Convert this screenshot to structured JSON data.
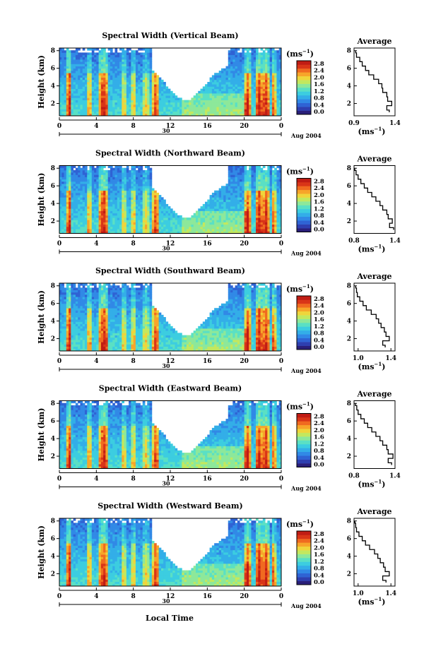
{
  "figure": {
    "xlabel_bottom": "Local Time",
    "colorbar_unit": "(ms",
    "colorbar_unit_exp": "−1",
    "profile_xlabel": "(ms",
    "profile_xlabel_exp": "−1",
    "profile_title": "Average"
  },
  "colors": {
    "scale": [
      "#2a1f7a",
      "#2e3fb0",
      "#2f63d4",
      "#3189e6",
      "#33aee8",
      "#3ccde0",
      "#5ae0c4",
      "#8de89a",
      "#c3e85e",
      "#efd53b",
      "#f7a52a",
      "#f06a20",
      "#d93518",
      "#c01c14"
    ],
    "background": "#ffffff"
  },
  "chart_data": [
    {
      "type": "heatmap",
      "title": "Spectral Width (Vertical Beam)",
      "ylabel": "Height (km)",
      "xticks": [
        "0",
        "4",
        "8",
        "12",
        "16",
        "20",
        "0"
      ],
      "xsub": "30",
      "date_label": "Aug 2004",
      "yticks": [
        "2",
        "4",
        "6",
        "8"
      ],
      "colorbar_ticks": [
        "0.0",
        "0.4",
        "0.8",
        "1.2",
        "1.6",
        "2.0",
        "2.4",
        "2.8"
      ],
      "profile": {
        "xticks": [
          "0.9",
          "1.4"
        ],
        "xlim": [
          0.9,
          1.4
        ],
        "yticks": [
          "2",
          "4",
          "6",
          "8"
        ],
        "heights": [
          1.0,
          1.5,
          2.0,
          2.5,
          3.0,
          3.5,
          4.0,
          4.5,
          5.0,
          5.5,
          6.0,
          6.5,
          7.0,
          7.5,
          8.0
        ],
        "values": [
          1.33,
          1.3,
          1.36,
          1.31,
          1.3,
          1.25,
          1.24,
          1.2,
          1.14,
          1.08,
          1.04,
          1.0,
          0.97,
          0.93,
          0.92
        ]
      }
    },
    {
      "type": "heatmap",
      "title": "Spectral Width (Northward Beam)",
      "ylabel": "Height (km)",
      "xticks": [
        "0",
        "4",
        "8",
        "12",
        "16",
        "20",
        "0"
      ],
      "xsub": "30",
      "date_label": "Aug 2004",
      "yticks": [
        "2",
        "4",
        "6",
        "8"
      ],
      "colorbar_ticks": [
        "0.0",
        "0.4",
        "0.8",
        "1.2",
        "1.6",
        "2.0",
        "2.4",
        "2.8"
      ],
      "profile": {
        "xticks": [
          "0.8",
          "1.4"
        ],
        "xlim": [
          0.8,
          1.4
        ],
        "yticks": [
          "2",
          "4",
          "6",
          "8"
        ],
        "heights": [
          1.0,
          1.5,
          2.0,
          2.5,
          3.0,
          3.5,
          4.0,
          4.5,
          5.0,
          5.5,
          6.0,
          6.5,
          7.0,
          7.5,
          8.0
        ],
        "values": [
          1.38,
          1.32,
          1.36,
          1.3,
          1.28,
          1.22,
          1.18,
          1.12,
          1.06,
          1.0,
          0.95,
          0.9,
          0.86,
          0.83,
          0.81
        ]
      }
    },
    {
      "type": "heatmap",
      "title": "Spectral Width (Southward Beam)",
      "ylabel": "Height (km)",
      "xticks": [
        "0",
        "4",
        "8",
        "12",
        "16",
        "20",
        "0"
      ],
      "xsub": "30",
      "date_label": "Aug 2004",
      "yticks": [
        "2",
        "4",
        "6",
        "8"
      ],
      "colorbar_ticks": [
        "0.0",
        "0.4",
        "0.8",
        "1.2",
        "1.6",
        "2.0",
        "2.4",
        "2.8"
      ],
      "profile": {
        "xticks": [
          "1.0",
          "1.4"
        ],
        "xlim": [
          0.95,
          1.45
        ],
        "yticks": [
          "2",
          "4",
          "6",
          "8"
        ],
        "heights": [
          1.0,
          1.5,
          2.0,
          2.5,
          3.0,
          3.5,
          4.0,
          4.5,
          5.0,
          5.5,
          6.0,
          6.5,
          7.0,
          7.5,
          8.0
        ],
        "values": [
          1.33,
          1.3,
          1.38,
          1.34,
          1.32,
          1.28,
          1.25,
          1.22,
          1.16,
          1.1,
          1.06,
          1.02,
          0.99,
          0.98,
          0.97
        ]
      }
    },
    {
      "type": "heatmap",
      "title": "Spectral Width (Eastward Beam)",
      "ylabel": "Height (km)",
      "xticks": [
        "0",
        "4",
        "8",
        "12",
        "16",
        "20",
        "0"
      ],
      "xsub": "30",
      "date_label": "Aug 2004",
      "yticks": [
        "2",
        "4",
        "6",
        "8"
      ],
      "colorbar_ticks": [
        "0.0",
        "0.4",
        "0.8",
        "1.2",
        "1.6",
        "2.0",
        "2.4",
        "2.8"
      ],
      "profile": {
        "xticks": [
          "0.8",
          "1.4"
        ],
        "xlim": [
          0.8,
          1.4
        ],
        "yticks": [
          "2",
          "4",
          "6",
          "8"
        ],
        "heights": [
          1.0,
          1.5,
          2.0,
          2.5,
          3.0,
          3.5,
          4.0,
          4.5,
          5.0,
          5.5,
          6.0,
          6.5,
          7.0,
          7.5,
          8.0
        ],
        "values": [
          1.35,
          1.3,
          1.37,
          1.3,
          1.28,
          1.22,
          1.18,
          1.12,
          1.06,
          1.0,
          0.95,
          0.9,
          0.86,
          0.84,
          0.82
        ]
      }
    },
    {
      "type": "heatmap",
      "title": "Spectral Width (Westward Beam)",
      "ylabel": "Height (km)",
      "xticks": [
        "0",
        "4",
        "8",
        "12",
        "16",
        "20",
        "0"
      ],
      "xsub": "30",
      "date_label": "Aug 2004",
      "yticks": [
        "2",
        "4",
        "6",
        "8"
      ],
      "colorbar_ticks": [
        "0.0",
        "0.4",
        "0.8",
        "1.2",
        "1.6",
        "2.0",
        "2.4",
        "2.8"
      ],
      "profile": {
        "xticks": [
          "1.0",
          "1.4"
        ],
        "xlim": [
          0.95,
          1.45
        ],
        "yticks": [
          "2",
          "4",
          "6",
          "8"
        ],
        "heights": [
          1.0,
          1.5,
          2.0,
          2.5,
          3.0,
          3.5,
          4.0,
          4.5,
          5.0,
          5.5,
          6.0,
          6.5,
          7.0,
          7.5,
          8.0
        ],
        "values": [
          1.34,
          1.3,
          1.38,
          1.33,
          1.31,
          1.27,
          1.24,
          1.2,
          1.14,
          1.09,
          1.05,
          1.01,
          0.98,
          0.97,
          0.96
        ]
      }
    }
  ]
}
